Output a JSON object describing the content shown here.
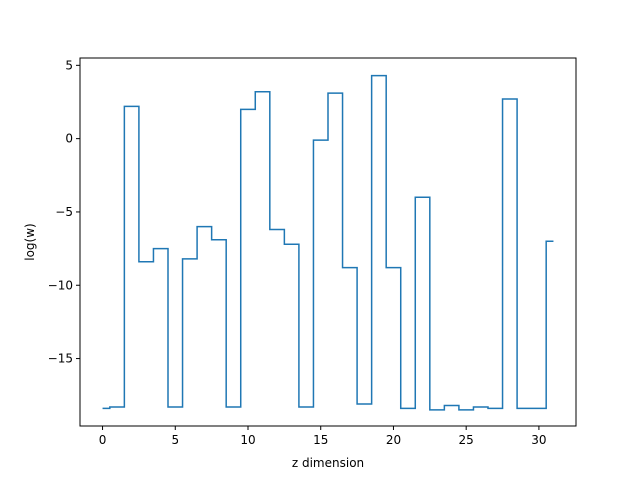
{
  "chart_data": {
    "type": "line",
    "title": "",
    "xlabel": "z dimension",
    "ylabel": "log(w)",
    "xlim": [
      -1.55,
      32.55
    ],
    "ylim": [
      -19.6,
      5.5
    ],
    "xticks": [
      0,
      5,
      10,
      15,
      20,
      25,
      30
    ],
    "yticks": [
      5,
      0,
      -5,
      -10,
      -15
    ],
    "grid": false,
    "legend": "none",
    "step": "mid",
    "series": [
      {
        "color": "#1f77b4",
        "x": [
          0,
          1,
          2,
          3,
          4,
          5,
          6,
          7,
          8,
          9,
          10,
          11,
          12,
          13,
          14,
          15,
          16,
          17,
          18,
          19,
          20,
          21,
          22,
          23,
          24,
          25,
          26,
          27,
          28,
          29,
          30,
          31
        ],
        "y": [
          -18.4,
          -18.3,
          2.2,
          -8.4,
          -7.5,
          -18.3,
          -8.2,
          -6.0,
          -6.9,
          -18.3,
          2.0,
          3.2,
          -6.2,
          -7.2,
          -18.3,
          -0.1,
          3.1,
          -8.8,
          -18.1,
          4.3,
          -8.8,
          -18.4,
          -4.0,
          -18.5,
          -18.2,
          -18.5,
          -18.3,
          -18.4,
          2.7,
          -18.4,
          -18.4,
          -7.0
        ]
      }
    ]
  }
}
